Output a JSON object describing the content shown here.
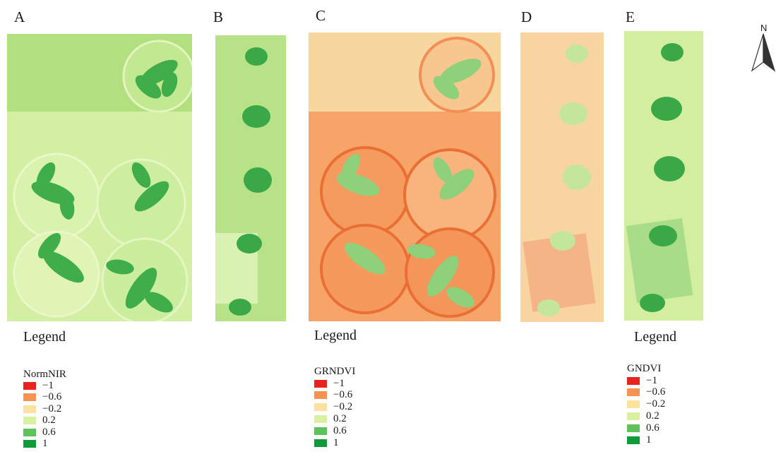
{
  "panels": [
    {
      "label": "A"
    },
    {
      "label": "B"
    },
    {
      "label": "C"
    },
    {
      "label": "D"
    },
    {
      "label": "E"
    }
  ],
  "north_arrow": {
    "letter": "N"
  },
  "legend_ramp_colors": [
    "#e8231f",
    "#f79250",
    "#fde19f",
    "#d8f0a0",
    "#5ec35a",
    "#109a3a"
  ],
  "legends": [
    {
      "title": "Legend",
      "index_name": "NormNIR",
      "values": [
        "−1",
        "−0.6",
        "−0.2",
        "0.2",
        "0.6",
        "1"
      ]
    },
    {
      "title": "Legend",
      "index_name": "GRNDVI",
      "values": [
        "−1",
        "−0.6",
        "−0.2",
        "0.2",
        "0.6",
        "1"
      ]
    },
    {
      "title": "Legend",
      "index_name": "GNDVI",
      "values": [
        "−1",
        "−0.6",
        "−0.2",
        "0.2",
        "0.6",
        "1"
      ]
    }
  ]
}
